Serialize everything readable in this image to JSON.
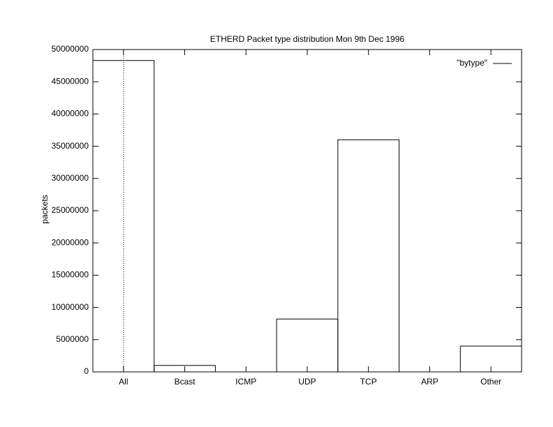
{
  "chart_data": {
    "type": "bar",
    "title": "ETHERD Packet type distribution Mon 9th Dec 1996",
    "y_label": "packets",
    "categories": [
      "All",
      "Bcast",
      "ICMP",
      "UDP",
      "TCP",
      "ARP",
      "Other"
    ],
    "series": [
      {
        "name": "\"bytype\"",
        "color": "#000000",
        "values": [
          48300000,
          1000000,
          0,
          8200000,
          36000000,
          0,
          4000000
        ]
      }
    ],
    "ylim": [
      0,
      50000000
    ],
    "yticks": [
      0,
      5000000,
      10000000,
      15000000,
      20000000,
      25000000,
      30000000,
      35000000,
      40000000,
      45000000,
      50000000
    ],
    "legend": "top-right"
  }
}
